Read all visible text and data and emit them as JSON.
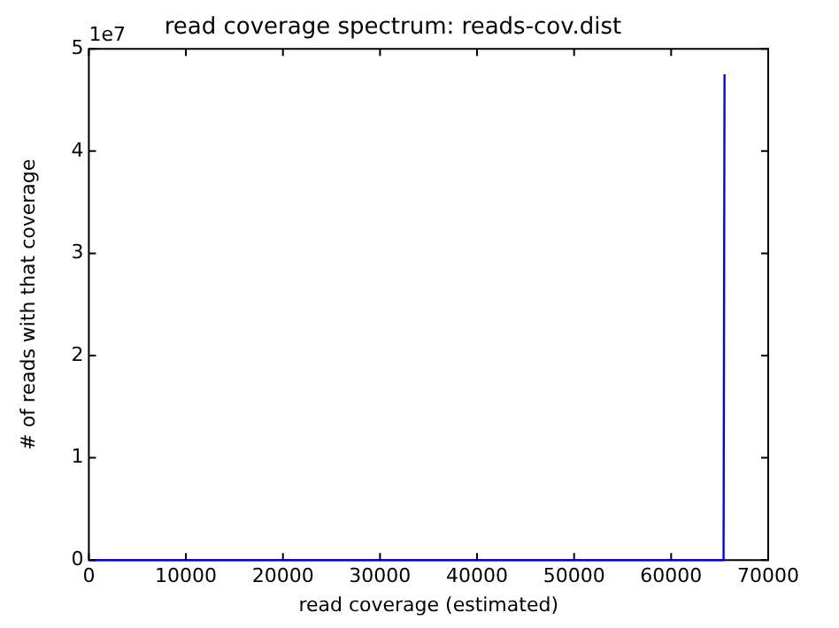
{
  "chart_data": {
    "type": "line",
    "title": "read coverage spectrum: reads-cov.dist",
    "xlabel": "read coverage (estimated)",
    "ylabel": "# of reads with that coverage",
    "x": [
      0,
      20000,
      40000,
      60000,
      65400,
      65500
    ],
    "series": [
      {
        "color": "#0000ff",
        "values": [
          0,
          0,
          0,
          0,
          0,
          4.75
        ]
      }
    ],
    "xlim": [
      0,
      70000
    ],
    "xticks": [
      0,
      10000,
      20000,
      30000,
      40000,
      50000,
      60000,
      70000
    ],
    "ylim": [
      0,
      5
    ],
    "yticks": [
      0,
      1,
      2,
      3,
      4,
      5
    ],
    "annotations": [
      "1e7"
    ],
    "grid": false,
    "legend": false,
    "marker": "none",
    "line_style": "solid"
  }
}
